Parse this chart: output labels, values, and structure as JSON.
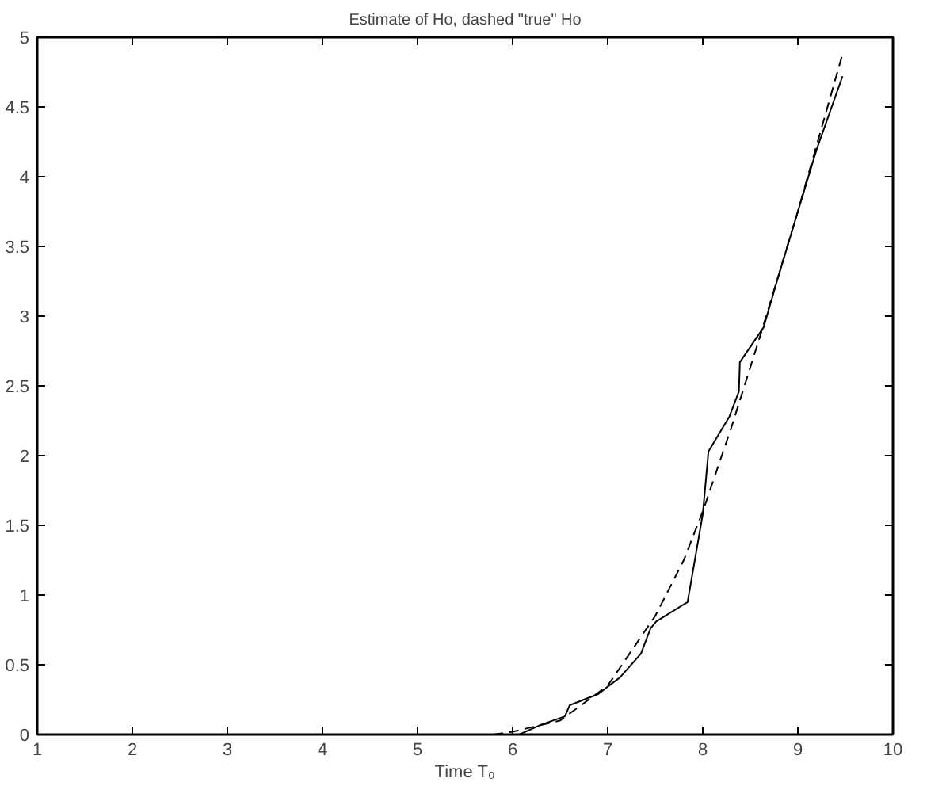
{
  "chart_data": {
    "type": "line",
    "title": "Estimate of Ho, dashed \"true\" Ho",
    "xlabel": "Time T₀",
    "xlim": [
      1,
      10
    ],
    "ylim": [
      0,
      5
    ],
    "xticks": [
      1,
      2,
      3,
      4,
      5,
      6,
      7,
      8,
      9,
      10
    ],
    "yticks": [
      0,
      0.5,
      1,
      1.5,
      2,
      2.5,
      3,
      3.5,
      4,
      4.5,
      5
    ],
    "grid": false,
    "marker": "none",
    "series": [
      {
        "color": "#000000",
        "line_style": "solid",
        "x": [
          1,
          5.7,
          6.07,
          6.3,
          6.55,
          6.6,
          6.9,
          7.13,
          7.35,
          7.45,
          7.51,
          7.84,
          8.0,
          8.06,
          8.28,
          8.38,
          8.39,
          8.64,
          8.78,
          9.0,
          9.2,
          9.47
        ],
        "values": [
          0,
          0,
          0,
          0.07,
          0.13,
          0.21,
          0.29,
          0.41,
          0.58,
          0.76,
          0.81,
          0.95,
          1.58,
          2.03,
          2.28,
          2.46,
          2.67,
          2.92,
          3.25,
          3.75,
          4.2,
          4.72
        ]
      },
      {
        "color": "#000000",
        "line_style": "dashed",
        "x": [
          5.8,
          6.0,
          6.5,
          7.0,
          7.5,
          7.8,
          8.0,
          8.3,
          8.6,
          9.0,
          9.47
        ],
        "values": [
          0,
          0.02,
          0.1,
          0.35,
          0.85,
          1.25,
          1.6,
          2.2,
          2.85,
          3.75,
          4.88
        ]
      }
    ]
  }
}
